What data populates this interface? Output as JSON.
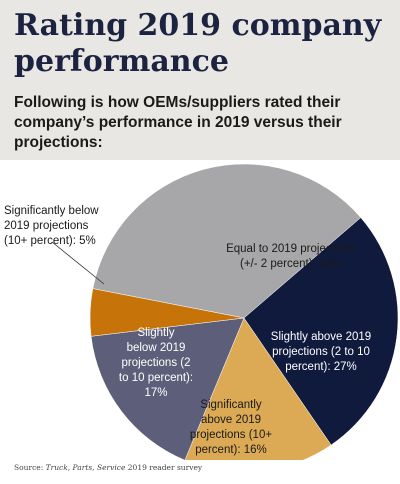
{
  "title_lines": [
    "Rating 2019 company",
    "performance"
  ],
  "subtitle": "Following is how OEMs/suppliers rated their company’s performance in 2019 versus their projections:",
  "source": {
    "prefix": "Source: ",
    "publication": "Truck, Parts, Service",
    "suffix": " 2019 reader survey"
  },
  "colors": {
    "header_bg": "#e8e7e3",
    "title": "#1c2340"
  },
  "chart_data": {
    "type": "pie",
    "slices": [
      {
        "category": "Equal to 2019 projections (+/- 2 percent)",
        "value": 36,
        "color": "#a7a7a9",
        "label_lines": [
          "Equal to 2019 projections",
          "(+/- 2 percent): 36%"
        ]
      },
      {
        "category": "Slightly above 2019 projections (2 to 10 percent)",
        "value": 27,
        "color": "#0f1a3d",
        "label_lines": [
          "Slightly above 2019",
          "projections (2 to 10",
          "percent): 27%"
        ]
      },
      {
        "category": "Significantly above 2019 projections (10+ percent)",
        "value": 16,
        "color": "#dcaa55",
        "label_lines": [
          "Significantly",
          "above 2019",
          "projections (10+",
          "percent): 16%"
        ]
      },
      {
        "category": "Slightly below 2019 projections (2 to 10 percent)",
        "value": 17,
        "color": "#5d5f7a",
        "label_lines": [
          "Slightly",
          "below 2019",
          "projections (2",
          "to 10 percent):",
          "17%"
        ]
      },
      {
        "category": "Significantly below 2019 projections (10+ percent)",
        "value": 5,
        "color": "#c6740a",
        "label_lines": [
          "Significantly below",
          "2019 projections",
          "(10+ percent): 5%"
        ]
      }
    ]
  }
}
